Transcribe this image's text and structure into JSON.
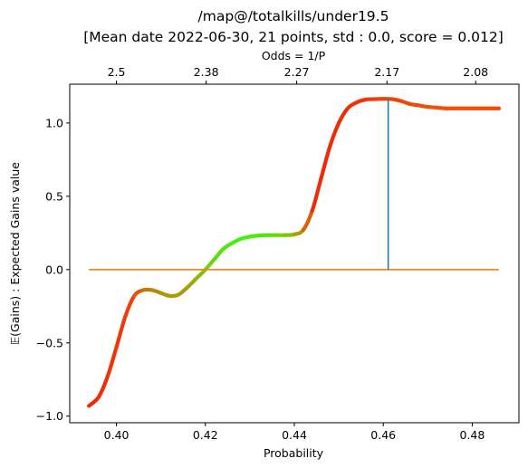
{
  "chart_data": {
    "type": "line",
    "title": "/map@/totalkills/under19.5",
    "subtitle": "[Mean date 2022-06-30, 21 points, std : 0.0, score = 0.012]",
    "xlabel": "Probability",
    "ylabel": "𝔼(Gains) : Expected Gains value",
    "x2label": "Odds  = 1/P",
    "xlim": [
      0.3895,
      0.4905
    ],
    "ylim": [
      -1.045,
      1.265
    ],
    "x_ticks": [
      0.4,
      0.42,
      0.44,
      0.46,
      0.48
    ],
    "x_tick_labels": [
      "0.40",
      "0.42",
      "0.44",
      "0.46",
      "0.48"
    ],
    "y_ticks": [
      -1.0,
      -0.5,
      0.0,
      0.5,
      1.0
    ],
    "y_tick_labels": [
      "−1.0",
      "−0.5",
      "0.0",
      "0.5",
      "1.0"
    ],
    "x2_ticks": [
      0.4,
      0.42017,
      0.44053,
      0.46083,
      0.48077
    ],
    "x2_tick_labels": [
      "2.5",
      "2.38",
      "2.27",
      "2.17",
      "2.08"
    ],
    "grid": false,
    "series": [
      {
        "kind": "gradient-line",
        "x": [
          0.3938,
          0.396,
          0.398,
          0.4,
          0.402,
          0.404,
          0.406,
          0.408,
          0.41,
          0.412,
          0.414,
          0.416,
          0.418,
          0.42,
          0.422,
          0.424,
          0.426,
          0.428,
          0.43,
          0.432,
          0.434,
          0.436,
          0.438,
          0.44,
          0.442,
          0.444,
          0.446,
          0.448,
          0.45,
          0.452,
          0.454,
          0.456,
          0.458,
          0.46,
          0.462,
          0.464,
          0.466,
          0.468,
          0.47,
          0.472,
          0.474,
          0.476,
          0.478,
          0.48,
          0.482,
          0.484,
          0.486
        ],
        "y": [
          -0.93,
          -0.87,
          -0.73,
          -0.53,
          -0.32,
          -0.18,
          -0.14,
          -0.14,
          -0.16,
          -0.18,
          -0.17,
          -0.12,
          -0.06,
          0.0,
          0.07,
          0.14,
          0.18,
          0.21,
          0.225,
          0.232,
          0.235,
          0.235,
          0.235,
          0.24,
          0.27,
          0.4,
          0.62,
          0.84,
          1.0,
          1.1,
          1.14,
          1.16,
          1.163,
          1.165,
          1.163,
          1.15,
          1.13,
          1.12,
          1.11,
          1.105,
          1.1,
          1.1,
          1.1,
          1.1,
          1.1,
          1.1,
          1.1
        ],
        "colors": [
          "#ee2a0a",
          "#ee300a",
          "#ee350a",
          "#ee3a0a",
          "#ee400a",
          "#e0560a",
          "#c8780a",
          "#b8880a",
          "#ad960a",
          "#a89c0a",
          "#a89c0a",
          "#a0a50a",
          "#88be0a",
          "#70d20a",
          "#5ae00a",
          "#4cea0a",
          "#46f00a",
          "#44f20a",
          "#48ee0a",
          "#50e60a",
          "#5ce00a",
          "#6cd60a",
          "#86c20a",
          "#aa9e0a",
          "#dc600a",
          "#ee2c0a",
          "#ee2a0a",
          "#ee2a0a",
          "#ee2c0a",
          "#ee300a",
          "#ee340a",
          "#ee380a",
          "#ee3c0a",
          "#ee400a",
          "#ee440a",
          "#ee480a",
          "#ee4c0a",
          "#ee4e0a",
          "#ee500a",
          "#ee500a",
          "#ee520a",
          "#ee520a",
          "#ee520a",
          "#ee500a",
          "#ee4e0a",
          "#ee4c0a",
          "#ee4a0a"
        ]
      },
      {
        "kind": "hline",
        "y": 0.0,
        "x_range": [
          0.3938,
          0.486
        ],
        "color": "#ff7f0e"
      },
      {
        "kind": "vline",
        "x": 0.4611,
        "y_range": [
          0.0,
          1.165
        ],
        "color": "#1f77b4"
      }
    ]
  }
}
